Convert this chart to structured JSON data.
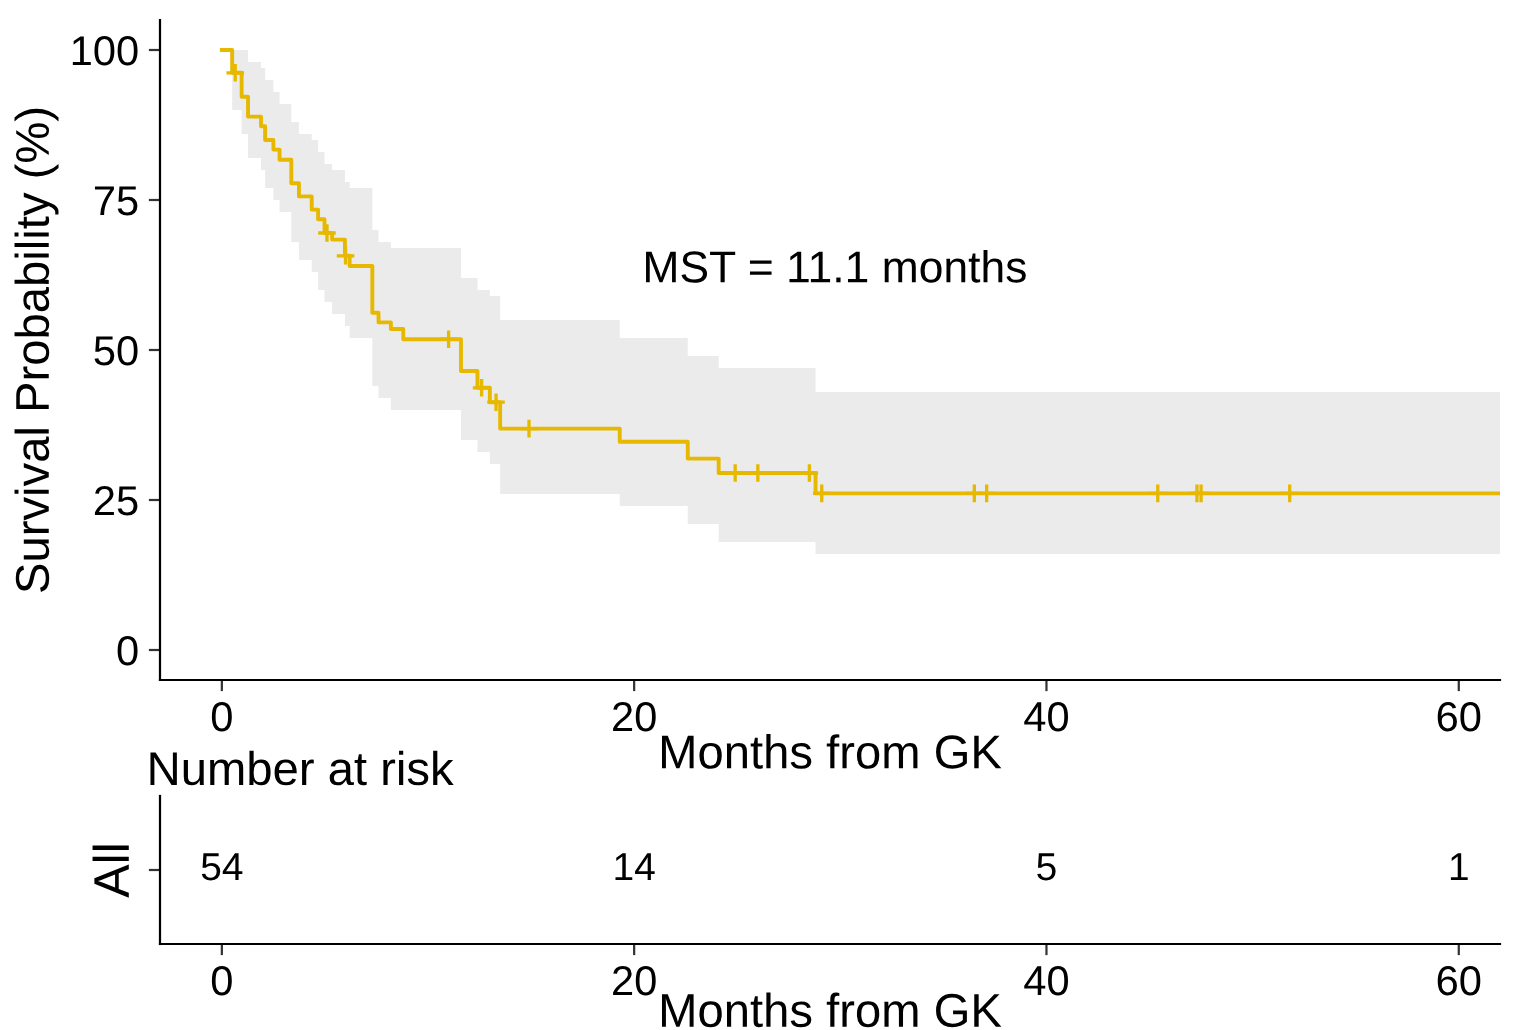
{
  "chart_data": [
    {
      "type": "step",
      "xlabel": "Months from GK",
      "ylabel": "Survival Probability (%)",
      "annotations": [
        "MST = 11.1 months"
      ],
      "xlim": [
        -3,
        62
      ],
      "xticks": [
        0,
        20,
        40,
        60
      ],
      "ylim": [
        -5,
        105
      ],
      "yticks": [
        0,
        25,
        50,
        75,
        100
      ],
      "grid": false,
      "series": [
        {
          "type": "step",
          "color": "#e7b800",
          "x": [
            0,
            0.5,
            0.96,
            1.27,
            1.9,
            2.1,
            2.5,
            2.8,
            3.37,
            3.74,
            4.36,
            4.67,
            4.98,
            5.35,
            5.97,
            6.2,
            7.3,
            7.6,
            8.2,
            8.8,
            11.6,
            12.4,
            13.0,
            13.5,
            19.3,
            22.6,
            24.1,
            28.8,
            62
          ],
          "values": [
            100,
            96.2,
            92.2,
            88.9,
            87.3,
            85.0,
            83.4,
            81.7,
            77.8,
            75.6,
            73.4,
            71.8,
            69.5,
            68.4,
            65.7,
            64.0,
            56.2,
            54.6,
            53.5,
            51.8,
            46.5,
            43.7,
            41.3,
            36.9,
            34.7,
            31.9,
            29.5,
            26.1,
            26.1
          ],
          "lower": [
            100,
            90,
            86,
            82,
            80,
            77,
            75,
            73,
            68,
            65,
            63,
            60,
            58,
            56,
            54,
            52,
            44,
            42,
            40,
            40,
            35,
            33,
            31,
            26,
            24,
            21,
            18,
            16,
            16
          ],
          "upper": [
            100,
            100,
            100,
            98,
            97,
            95,
            93,
            91,
            88,
            86,
            85,
            83,
            81,
            80,
            78,
            77,
            70,
            68,
            67,
            67,
            62,
            60,
            59,
            55,
            52,
            49,
            47,
            43,
            43
          ]
        },
        {
          "type": "scatter",
          "color": "#e7b800",
          "marker": "cross",
          "x": [
            0.65,
            5.1,
            6.0,
            11.0,
            12.6,
            13.3,
            14.9,
            24.9,
            26.0,
            28.5,
            29.1,
            36.5,
            37.1,
            45.4,
            47.3,
            47.5,
            51.8
          ],
          "values": [
            96.2,
            69.5,
            65.7,
            51.8,
            43.7,
            41.3,
            36.9,
            29.5,
            29.5,
            29.5,
            26.1,
            26.1,
            26.1,
            26.1,
            26.1,
            26.1,
            26.1
          ]
        }
      ]
    },
    {
      "type": "heatmap",
      "title": "Number at risk",
      "xlabel": "Months from GK",
      "y_categories": [
        "All"
      ],
      "xlim": [
        -3,
        62
      ],
      "xticks": [
        0,
        20,
        40,
        60
      ],
      "x": [
        0,
        20,
        40,
        60
      ],
      "cells": [
        [
          54,
          14,
          5,
          1
        ]
      ],
      "data_labels": true
    }
  ]
}
